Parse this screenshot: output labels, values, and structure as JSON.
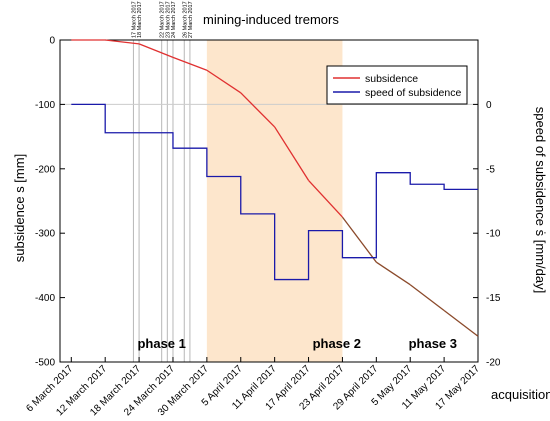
{
  "chart_data": {
    "type": "line",
    "title": "mining-induced tremors",
    "xlabel": "acquisition",
    "ylabel_left": "subsidence s [mm]",
    "ylabel_right": "speed of subsidence ṡ [mm/day]",
    "x_tick_labels": [
      "6 March 2017",
      "12 March 2017",
      "18 March 2017",
      "24 March 2017",
      "30 March 2017",
      "5 April 2017",
      "11 April 2017",
      "17 April 2017",
      "23 April 2017",
      "29 April 2017",
      "5 May 2017",
      "11 May 2017",
      "17 May 2017"
    ],
    "x_range_days": [
      -2,
      72
    ],
    "ylim_left": [
      -500,
      0
    ],
    "ylim_right": [
      -20,
      5
    ],
    "y_ticks_left": [
      "0",
      "-100",
      "-200",
      "-300",
      "-400",
      "-500"
    ],
    "y_ticks_right": [
      "0",
      "-5",
      "-10",
      "-15",
      "-20"
    ],
    "tremor_dates": [
      "17 March 2017",
      "18 March 2017",
      "22 March 2017",
      "23 March 2017",
      "24 March 2017",
      "26 March 2017",
      "27 March 2017"
    ],
    "highlight_period": {
      "start": "30 March 2017",
      "end": "23 April 2017",
      "color": "#fde6cc"
    },
    "phases": [
      {
        "label": "phase 1"
      },
      {
        "label": "phase 2"
      },
      {
        "label": "phase 3"
      }
    ],
    "legend_position": "top-right",
    "series": [
      {
        "name": "subsidence",
        "axis": "left",
        "color": "#e03030",
        "color_after_phase2": "#8b4a2b",
        "x": [
          "6 March 2017",
          "12 March 2017",
          "18 March 2017",
          "24 March 2017",
          "30 March 2017",
          "5 April 2017",
          "11 April 2017",
          "17 April 2017",
          "23 April 2017",
          "29 April 2017",
          "5 May 2017",
          "11 May 2017",
          "17 May 2017"
        ],
        "values": [
          0,
          0,
          -6,
          -27,
          -47,
          -82,
          -135,
          -218,
          -275,
          -345,
          -380,
          -420,
          -460
        ]
      },
      {
        "name": "speed of subsidence",
        "axis": "right",
        "color": "#1a1aaa",
        "step_start": [
          "6 March 2017",
          "12 March 2017",
          "24 March 2017",
          "30 March 2017",
          "5 April 2017",
          "11 April 2017",
          "17 April 2017",
          "23 April 2017",
          "29 April 2017",
          "5 May 2017",
          "11 May 2017"
        ],
        "step_end": [
          "12 March 2017",
          "24 March 2017",
          "30 March 2017",
          "5 April 2017",
          "11 April 2017",
          "17 April 2017",
          "23 April 2017",
          "29 April 2017",
          "5 May 2017",
          "11 May 2017",
          "17 May 2017"
        ],
        "values": [
          0,
          -2.2,
          -3.4,
          -5.6,
          -8.5,
          -13.6,
          -9.8,
          -11.9,
          -5.3,
          -6.2,
          -6.6
        ]
      }
    ]
  }
}
